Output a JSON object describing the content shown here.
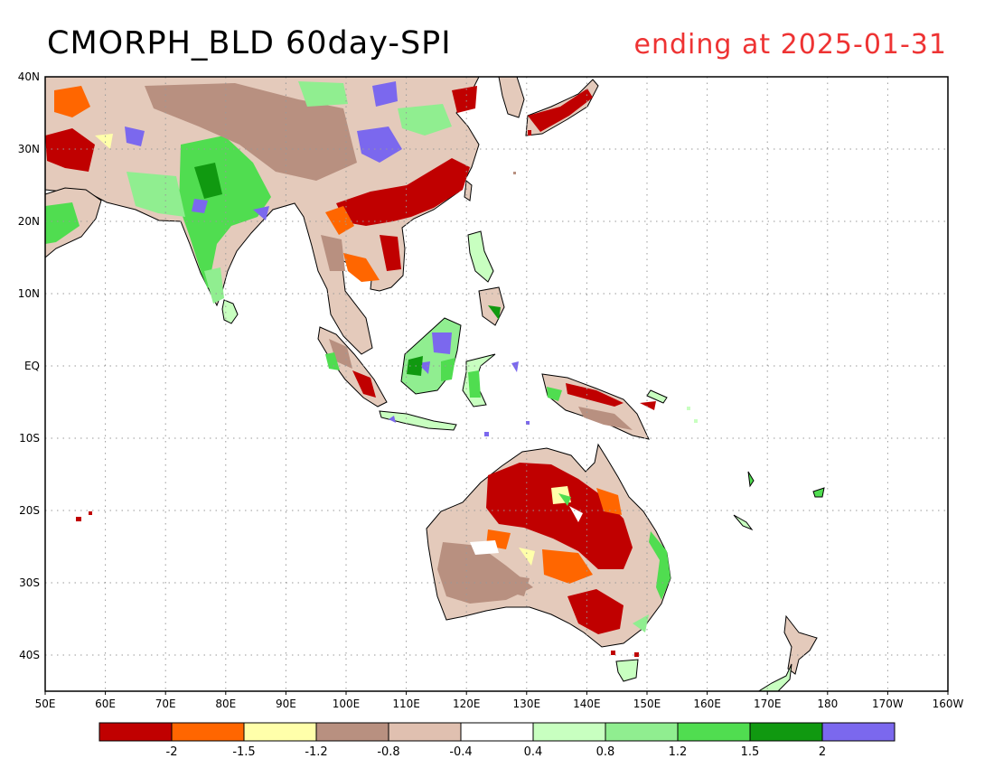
{
  "title": "CMORPH_BLD 60day-SPI",
  "subtitle": "ending at 2025-01-31",
  "subtitle_color": "#ee3333",
  "lon_labels": [
    "50E",
    "60E",
    "70E",
    "80E",
    "90E",
    "100E",
    "110E",
    "120E",
    "130E",
    "140E",
    "150E",
    "160E",
    "170E",
    "180",
    "170W",
    "160W"
  ],
  "lat_labels": [
    "40N",
    "30N",
    "20N",
    "10N",
    "EQ",
    "10S",
    "20S",
    "30S",
    "40S"
  ],
  "colorbar": {
    "colors": [
      "#c00000",
      "#ff6600",
      "#ffffaa",
      "#b89080",
      "#e0c0b0",
      "#ffffff",
      "#c8ffc0",
      "#90ee90",
      "#50dd50",
      "#109910",
      "#7b68ee"
    ],
    "labels": [
      "-2",
      "-1.5",
      "-1.2",
      "-0.8",
      "-0.4",
      "0.4",
      "0.8",
      "1.2",
      "1.5",
      "2"
    ]
  },
  "palette": {
    "dry_extreme": "#c00000",
    "dry_severe": "#ff6600",
    "dry_moderate": "#ffffaa",
    "dry_mild": "#b89080",
    "dry_slight": "#e0c0b0",
    "wet_slight": "#c8ffc0",
    "wet_mild": "#90ee90",
    "wet_moderate": "#50dd50",
    "wet_severe": "#109910",
    "wet_extreme": "#7b68ee"
  }
}
